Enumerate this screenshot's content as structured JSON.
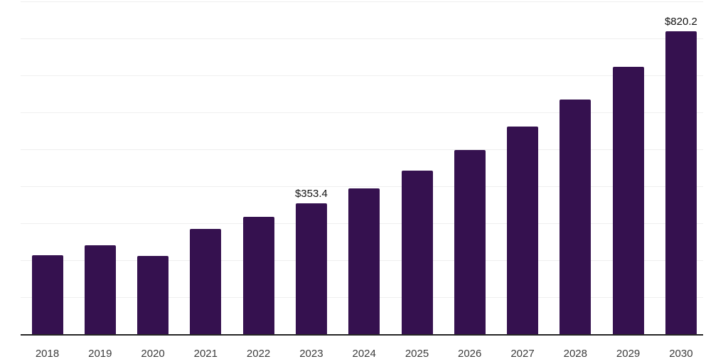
{
  "chart_data": {
    "type": "bar",
    "title": "",
    "xlabel": "",
    "ylabel": "",
    "categories": [
      "2018",
      "2019",
      "2020",
      "2021",
      "2022",
      "2023",
      "2024",
      "2025",
      "2026",
      "2027",
      "2028",
      "2029",
      "2030"
    ],
    "values": [
      214,
      240,
      212,
      285,
      318,
      353.4,
      395,
      443,
      498,
      561,
      634,
      723,
      820.2
    ],
    "data_labels": [
      "",
      "",
      "",
      "",
      "",
      "$353.4",
      "",
      "",
      "",
      "",
      "",
      "",
      "$820.2"
    ],
    "ylim": [
      0,
      900
    ],
    "gridline_interval": 100,
    "grid": true,
    "legend": false
  },
  "colors": {
    "bar": "#35114F",
    "axis_line": "#262626",
    "gridline": "#EFEFEF",
    "x_tick_label": "#3C3C3C",
    "data_label": "#111111",
    "background": "#FFFFFF"
  }
}
